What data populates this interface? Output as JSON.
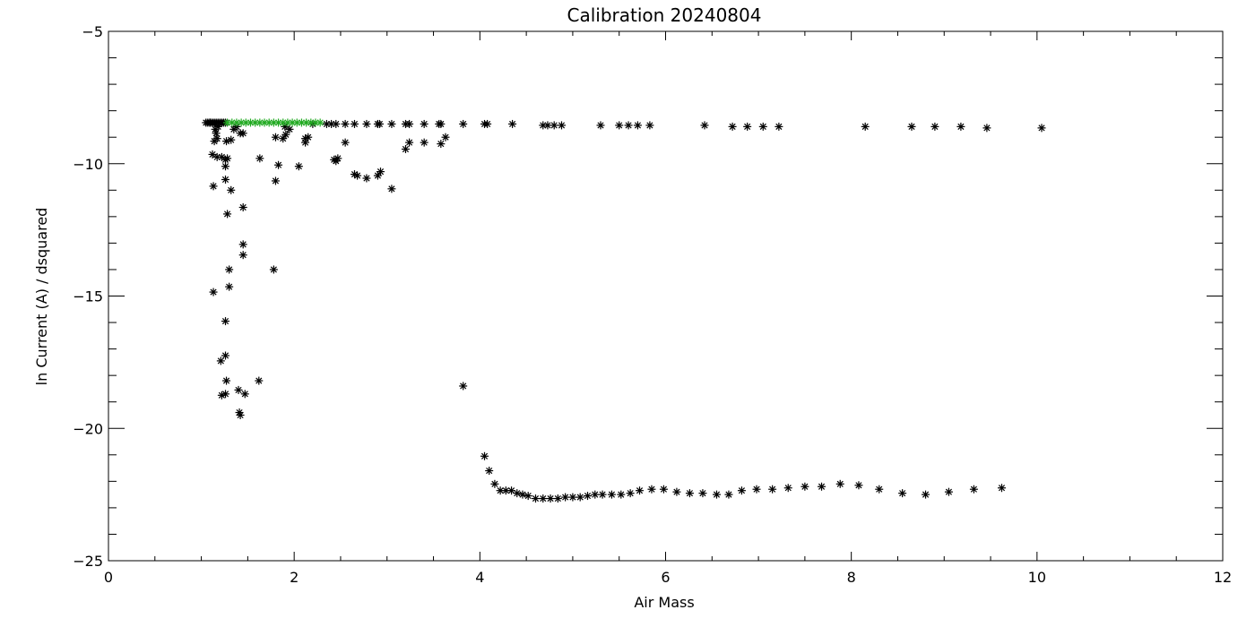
{
  "chart_data": {
    "type": "scatter",
    "title": "Calibration 20240804",
    "xlabel": "Air Mass",
    "ylabel": "ln Current (A) / dsquared",
    "xlim": [
      0,
      12
    ],
    "ylim": [
      -25,
      -5
    ],
    "x_ticks": [
      0,
      2,
      4,
      6,
      8,
      10,
      12
    ],
    "y_ticks": [
      -25,
      -20,
      -15,
      -10,
      -5
    ],
    "x_tick_labels": [
      "0",
      "2",
      "4",
      "6",
      "8",
      "10",
      "12"
    ],
    "y_tick_labels": [
      "−25",
      "−20",
      "−15",
      "−10",
      "−5"
    ],
    "grid": false,
    "marker": "asterisk",
    "series": [
      {
        "color": "#000000",
        "points": [
          [
            1.05,
            -8.45
          ],
          [
            1.07,
            -8.45
          ],
          [
            1.09,
            -8.45
          ],
          [
            1.1,
            -8.45
          ],
          [
            1.12,
            -8.45
          ],
          [
            1.14,
            -8.45
          ],
          [
            1.16,
            -8.45
          ],
          [
            1.18,
            -8.45
          ],
          [
            1.2,
            -8.45
          ],
          [
            1.22,
            -8.45
          ],
          [
            1.24,
            -8.45
          ],
          [
            1.26,
            -8.45
          ],
          [
            1.15,
            -8.7
          ],
          [
            1.16,
            -8.85
          ],
          [
            1.17,
            -9.05
          ],
          [
            1.18,
            -8.6
          ],
          [
            1.14,
            -9.15
          ],
          [
            1.12,
            -9.65
          ],
          [
            1.17,
            -9.75
          ],
          [
            1.22,
            -9.75
          ],
          [
            1.26,
            -9.85
          ],
          [
            1.26,
            -10.1
          ],
          [
            1.27,
            -9.15
          ],
          [
            1.28,
            -9.8
          ],
          [
            1.32,
            -9.1
          ],
          [
            1.35,
            -8.7
          ],
          [
            1.38,
            -8.6
          ],
          [
            1.42,
            -8.85
          ],
          [
            1.45,
            -8.85
          ],
          [
            1.13,
            -10.85
          ],
          [
            1.26,
            -10.6
          ],
          [
            1.32,
            -11.0
          ],
          [
            1.28,
            -11.9
          ],
          [
            1.45,
            -11.65
          ],
          [
            1.45,
            -13.05
          ],
          [
            1.45,
            -13.45
          ],
          [
            1.13,
            -14.85
          ],
          [
            1.3,
            -14.65
          ],
          [
            1.26,
            -15.95
          ],
          [
            1.26,
            -17.25
          ],
          [
            1.21,
            -17.45
          ],
          [
            1.27,
            -18.2
          ],
          [
            1.22,
            -18.75
          ],
          [
            1.26,
            -18.7
          ],
          [
            1.4,
            -18.55
          ],
          [
            1.47,
            -18.7
          ],
          [
            1.41,
            -19.4
          ],
          [
            1.42,
            -19.5
          ],
          [
            1.62,
            -18.2
          ],
          [
            1.63,
            -9.8
          ],
          [
            1.8,
            -10.65
          ],
          [
            1.83,
            -10.05
          ],
          [
            1.8,
            -9.0
          ],
          [
            1.88,
            -9.05
          ],
          [
            1.91,
            -8.9
          ],
          [
            1.95,
            -8.7
          ],
          [
            1.9,
            -8.6
          ],
          [
            2.05,
            -10.1
          ],
          [
            2.12,
            -9.2
          ],
          [
            2.12,
            -9.05
          ],
          [
            2.15,
            -9.0
          ],
          [
            2.2,
            -8.5
          ],
          [
            2.35,
            -8.5
          ],
          [
            2.4,
            -8.5
          ],
          [
            2.45,
            -8.5
          ],
          [
            2.43,
            -9.85
          ],
          [
            2.45,
            -9.9
          ],
          [
            2.47,
            -9.8
          ],
          [
            2.55,
            -9.2
          ],
          [
            2.55,
            -8.5
          ],
          [
            2.65,
            -8.5
          ],
          [
            2.65,
            -10.4
          ],
          [
            2.68,
            -10.45
          ],
          [
            2.78,
            -10.55
          ],
          [
            2.78,
            -8.5
          ],
          [
            2.9,
            -8.5
          ],
          [
            2.92,
            -8.5
          ],
          [
            2.9,
            -10.45
          ],
          [
            2.93,
            -10.3
          ],
          [
            3.05,
            -8.5
          ],
          [
            3.05,
            -10.95
          ],
          [
            3.2,
            -8.5
          ],
          [
            3.24,
            -8.5
          ],
          [
            3.2,
            -9.45
          ],
          [
            3.24,
            -9.2
          ],
          [
            3.4,
            -8.5
          ],
          [
            3.4,
            -9.2
          ],
          [
            3.56,
            -8.5
          ],
          [
            3.58,
            -8.5
          ],
          [
            3.58,
            -9.25
          ],
          [
            3.63,
            -9.0
          ],
          [
            1.3,
            -14.0
          ],
          [
            1.78,
            -14.0
          ],
          [
            3.82,
            -8.5
          ],
          [
            4.05,
            -8.5
          ],
          [
            4.08,
            -8.5
          ],
          [
            4.35,
            -8.5
          ],
          [
            4.68,
            -8.55
          ],
          [
            4.73,
            -8.55
          ],
          [
            4.8,
            -8.55
          ],
          [
            4.88,
            -8.55
          ],
          [
            5.3,
            -8.55
          ],
          [
            5.5,
            -8.55
          ],
          [
            5.6,
            -8.55
          ],
          [
            5.7,
            -8.55
          ],
          [
            5.83,
            -8.55
          ],
          [
            6.42,
            -8.55
          ],
          [
            6.72,
            -8.6
          ],
          [
            6.88,
            -8.6
          ],
          [
            7.05,
            -8.6
          ],
          [
            7.22,
            -8.6
          ],
          [
            8.15,
            -8.6
          ],
          [
            8.65,
            -8.6
          ],
          [
            8.9,
            -8.6
          ],
          [
            9.18,
            -8.6
          ],
          [
            9.46,
            -8.65
          ],
          [
            10.05,
            -8.65
          ],
          [
            3.82,
            -18.4
          ],
          [
            4.05,
            -21.05
          ],
          [
            4.1,
            -21.6
          ],
          [
            4.16,
            -22.1
          ],
          [
            4.22,
            -22.35
          ],
          [
            4.28,
            -22.35
          ],
          [
            4.34,
            -22.35
          ],
          [
            4.4,
            -22.45
          ],
          [
            4.46,
            -22.5
          ],
          [
            4.52,
            -22.55
          ],
          [
            4.6,
            -22.65
          ],
          [
            4.68,
            -22.65
          ],
          [
            4.76,
            -22.65
          ],
          [
            4.84,
            -22.65
          ],
          [
            4.92,
            -22.6
          ],
          [
            5.0,
            -22.6
          ],
          [
            5.08,
            -22.6
          ],
          [
            5.16,
            -22.55
          ],
          [
            5.24,
            -22.5
          ],
          [
            5.32,
            -22.5
          ],
          [
            5.42,
            -22.5
          ],
          [
            5.52,
            -22.5
          ],
          [
            5.62,
            -22.45
          ],
          [
            5.72,
            -22.35
          ],
          [
            5.85,
            -22.3
          ],
          [
            5.98,
            -22.3
          ],
          [
            6.12,
            -22.4
          ],
          [
            6.26,
            -22.45
          ],
          [
            6.4,
            -22.45
          ],
          [
            6.55,
            -22.5
          ],
          [
            6.68,
            -22.5
          ],
          [
            6.82,
            -22.35
          ],
          [
            6.98,
            -22.3
          ],
          [
            7.15,
            -22.3
          ],
          [
            7.32,
            -22.25
          ],
          [
            7.5,
            -22.2
          ],
          [
            7.68,
            -22.2
          ],
          [
            7.88,
            -22.1
          ],
          [
            8.08,
            -22.15
          ],
          [
            8.3,
            -22.3
          ],
          [
            8.55,
            -22.45
          ],
          [
            8.8,
            -22.5
          ],
          [
            9.05,
            -22.4
          ],
          [
            9.32,
            -22.3
          ],
          [
            9.62,
            -22.25
          ]
        ]
      },
      {
        "color": "#22aa22",
        "points": [
          [
            1.28,
            -8.45
          ],
          [
            1.33,
            -8.45
          ],
          [
            1.38,
            -8.45
          ],
          [
            1.43,
            -8.45
          ],
          [
            1.48,
            -8.45
          ],
          [
            1.53,
            -8.45
          ],
          [
            1.58,
            -8.45
          ],
          [
            1.63,
            -8.45
          ],
          [
            1.68,
            -8.45
          ],
          [
            1.73,
            -8.45
          ],
          [
            1.78,
            -8.45
          ],
          [
            1.83,
            -8.45
          ],
          [
            1.88,
            -8.45
          ],
          [
            1.93,
            -8.45
          ],
          [
            1.98,
            -8.45
          ],
          [
            2.03,
            -8.45
          ],
          [
            2.08,
            -8.45
          ],
          [
            2.13,
            -8.45
          ],
          [
            2.18,
            -8.45
          ],
          [
            2.23,
            -8.45
          ],
          [
            2.28,
            -8.45
          ]
        ]
      }
    ]
  }
}
